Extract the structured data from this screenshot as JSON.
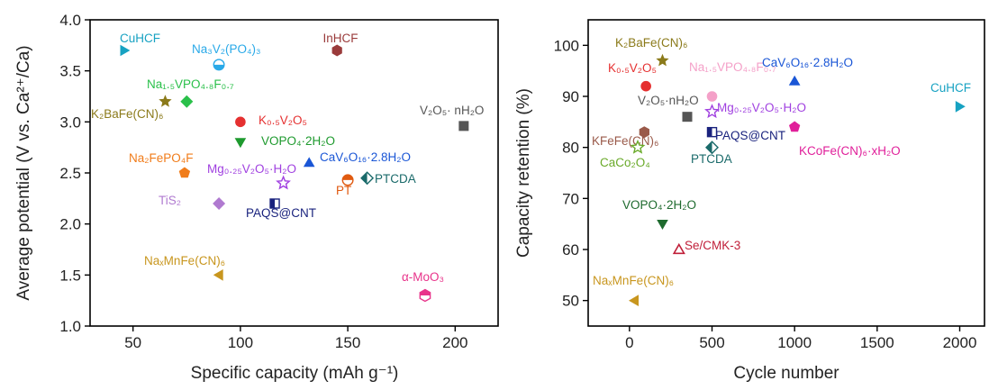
{
  "chart_data": [
    {
      "type": "scatter",
      "title": "",
      "xlabel": "Specific capacity (mAh g⁻¹)",
      "ylabel": "Average potential (V vs. Ca²⁺/Ca)",
      "xlim": [
        30,
        220
      ],
      "ylim": [
        1.0,
        4.0
      ],
      "xticks": [
        50,
        100,
        150,
        200
      ],
      "yticks": [
        1.0,
        1.5,
        2.0,
        2.5,
        3.0,
        3.5,
        4.0
      ],
      "grid": false,
      "points": [
        {
          "label": "CuHCF",
          "x": 46,
          "y": 3.7,
          "marker": "tri-right",
          "color": "#17a2c2"
        },
        {
          "label": "Na₃V₂(PO₄)₃",
          "x": 90,
          "y": 3.56,
          "marker": "circle-half",
          "color": "#29a9e8"
        },
        {
          "label": "InHCF",
          "x": 145,
          "y": 3.7,
          "marker": "hexagon",
          "color": "#9a3b3b"
        },
        {
          "label": "Na₁.₅VPO₄.₈F₀.₇",
          "x": 75,
          "y": 3.2,
          "marker": "diamond",
          "color": "#2ac04a"
        },
        {
          "label": "K₂BaFe(CN)₆",
          "x": 65,
          "y": 3.2,
          "marker": "star",
          "color": "#8b7a1a"
        },
        {
          "label": "K₀.₅V₂O₅",
          "x": 100,
          "y": 3.0,
          "marker": "circle",
          "color": "#e53030"
        },
        {
          "label": "VOPO₄·2H₂O",
          "x": 100,
          "y": 2.8,
          "marker": "tri-down",
          "color": "#1e9a2e"
        },
        {
          "label": "V₂O₅· nH₂O",
          "x": 204,
          "y": 2.96,
          "marker": "square",
          "color": "#555555"
        },
        {
          "label": "CaV₆O₁₆·2.8H₂O",
          "x": 132,
          "y": 2.6,
          "marker": "tri-up",
          "color": "#1a56d6"
        },
        {
          "label": "Na₂FePO₄F",
          "x": 74,
          "y": 2.5,
          "marker": "pentagon",
          "color": "#f07c1a"
        },
        {
          "label": "Mg₀.₂₅V₂O₅·H₂O",
          "x": 120,
          "y": 2.4,
          "marker": "star-open",
          "color": "#a040e0"
        },
        {
          "label": "PT",
          "x": 150,
          "y": 2.43,
          "marker": "circle-half-bottom",
          "color": "#e05a10"
        },
        {
          "label": "PTCDA",
          "x": 159,
          "y": 2.45,
          "marker": "diamond-half",
          "color": "#1a6a6a"
        },
        {
          "label": "TiS₂",
          "x": 90,
          "y": 2.2,
          "marker": "diamond",
          "color": "#b07ad0"
        },
        {
          "label": "PAQS@CNT",
          "x": 116,
          "y": 2.2,
          "marker": "square-half",
          "color": "#1a237e"
        },
        {
          "label": "NaₓMnFe(CN)₆",
          "x": 90,
          "y": 1.5,
          "marker": "tri-left",
          "color": "#c8961e"
        },
        {
          "label": "α-MoO₃",
          "x": 186,
          "y": 1.3,
          "marker": "hexagon-half",
          "color": "#e8338a"
        }
      ]
    },
    {
      "type": "scatter",
      "title": "",
      "xlabel": "Cycle number",
      "ylabel": "Capacity retention (%)",
      "xlim": [
        -250,
        2150
      ],
      "ylim": [
        45,
        105
      ],
      "xticks": [
        0,
        500,
        1000,
        1500,
        2000
      ],
      "yticks": [
        50,
        60,
        70,
        80,
        90,
        100
      ],
      "grid": false,
      "points": [
        {
          "label": "K₂BaFe(CN)₆",
          "x": 200,
          "y": 97,
          "marker": "star",
          "color": "#8b7a1a"
        },
        {
          "label": "K₀.₅V₂O₅",
          "x": 100,
          "y": 92,
          "marker": "circle",
          "color": "#e53030"
        },
        {
          "label": "Na₁.₅VPO₄.₈F₀.₇",
          "x": 500,
          "y": 90,
          "marker": "circle",
          "color": "#f4a0c8"
        },
        {
          "label": "CaV₆O₁₆·2.8H₂O",
          "x": 1000,
          "y": 93,
          "marker": "tri-up",
          "color": "#1a56d6"
        },
        {
          "label": "CuHCF",
          "x": 2000,
          "y": 88,
          "marker": "tri-right",
          "color": "#17a2c2"
        },
        {
          "label": "V₂O₅·nH₂O",
          "x": 350,
          "y": 86,
          "marker": "square",
          "color": "#555555"
        },
        {
          "label": "Mg₀.₂₅V₂O₅·H₂O",
          "x": 500,
          "y": 87,
          "marker": "star-open",
          "color": "#a040e0"
        },
        {
          "label": "KFeFe(CN)₆",
          "x": 90,
          "y": 83,
          "marker": "hexagon",
          "color": "#9a5a4a"
        },
        {
          "label": "KCoFe(CN)₆·xH₂O",
          "x": 1000,
          "y": 84,
          "marker": "pentagon",
          "color": "#e0209a"
        },
        {
          "label": "PAQS@CNT",
          "x": 500,
          "y": 83,
          "marker": "square-half",
          "color": "#1a237e"
        },
        {
          "label": "PTCDA",
          "x": 500,
          "y": 80,
          "marker": "diamond-half",
          "color": "#1a6a6a"
        },
        {
          "label": "CaCo₂O₄",
          "x": 50,
          "y": 80,
          "marker": "star-open",
          "color": "#6aaa2a"
        },
        {
          "label": "VOPO₄·2H₂O",
          "x": 200,
          "y": 65,
          "marker": "tri-down",
          "color": "#1e6a2e"
        },
        {
          "label": "Se/CMK-3",
          "x": 300,
          "y": 60,
          "marker": "tri-up-open",
          "color": "#c0203a"
        },
        {
          "label": "NaₓMnFe(CN)₆",
          "x": 30,
          "y": 50,
          "marker": "tri-left",
          "color": "#c8961e"
        }
      ]
    }
  ]
}
